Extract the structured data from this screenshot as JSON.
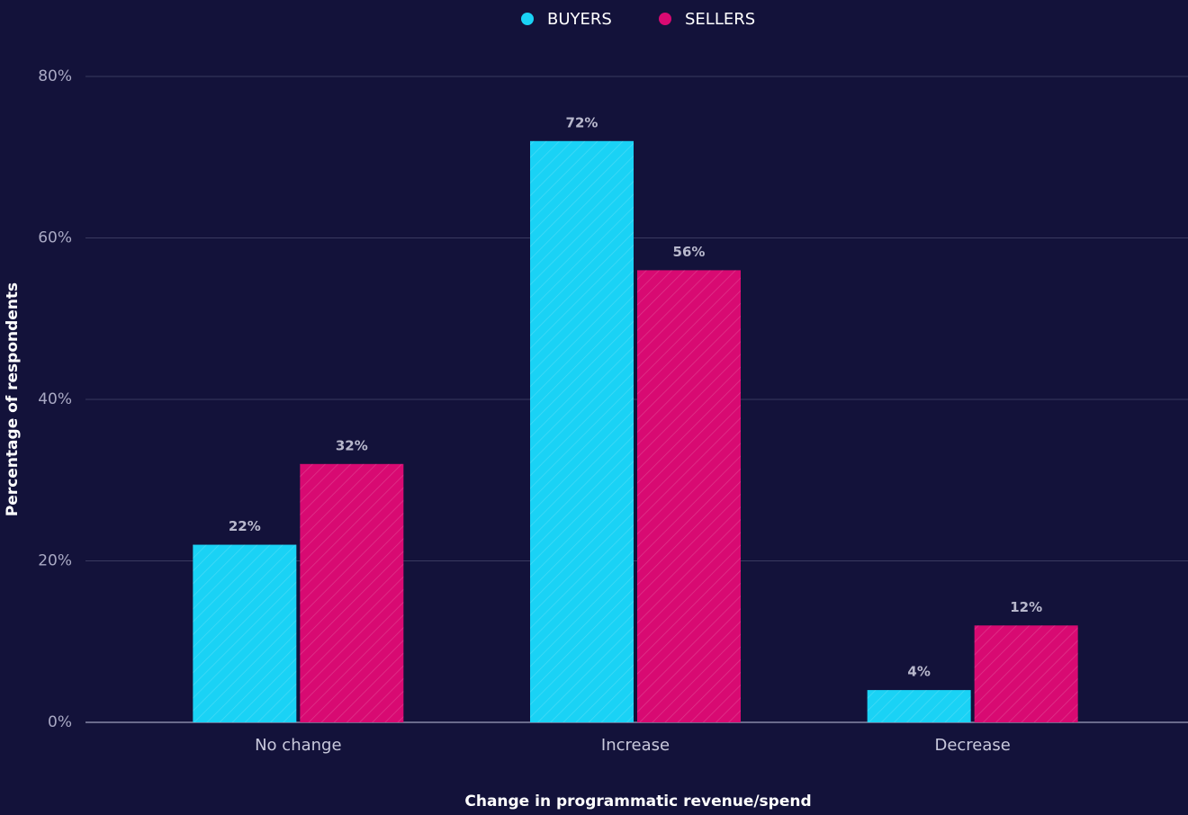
{
  "chart_data": {
    "type": "bar",
    "x_label": "Change in programmatic revenue/spend",
    "y_label": "Percentage of respondents",
    "categories": [
      "No change",
      "Increase",
      "Decrease"
    ],
    "series": [
      {
        "name": "BUYERS",
        "color": "#1ad2f5",
        "values": [
          22,
          72,
          4
        ],
        "value_labels": [
          "22%",
          "72%",
          "4%"
        ]
      },
      {
        "name": "SELLERS",
        "color": "#d80a72",
        "values": [
          32,
          56,
          12
        ],
        "value_labels": [
          "32%",
          "56%",
          "12%"
        ]
      }
    ],
    "ylim": [
      0,
      80
    ],
    "yticks": [
      {
        "value": 0,
        "label": "0%"
      },
      {
        "value": 20,
        "label": "20%"
      },
      {
        "value": 40,
        "label": "40%"
      },
      {
        "value": 60,
        "label": "60%"
      },
      {
        "value": 80,
        "label": "80%"
      }
    ],
    "grid": true,
    "legend": "top"
  }
}
